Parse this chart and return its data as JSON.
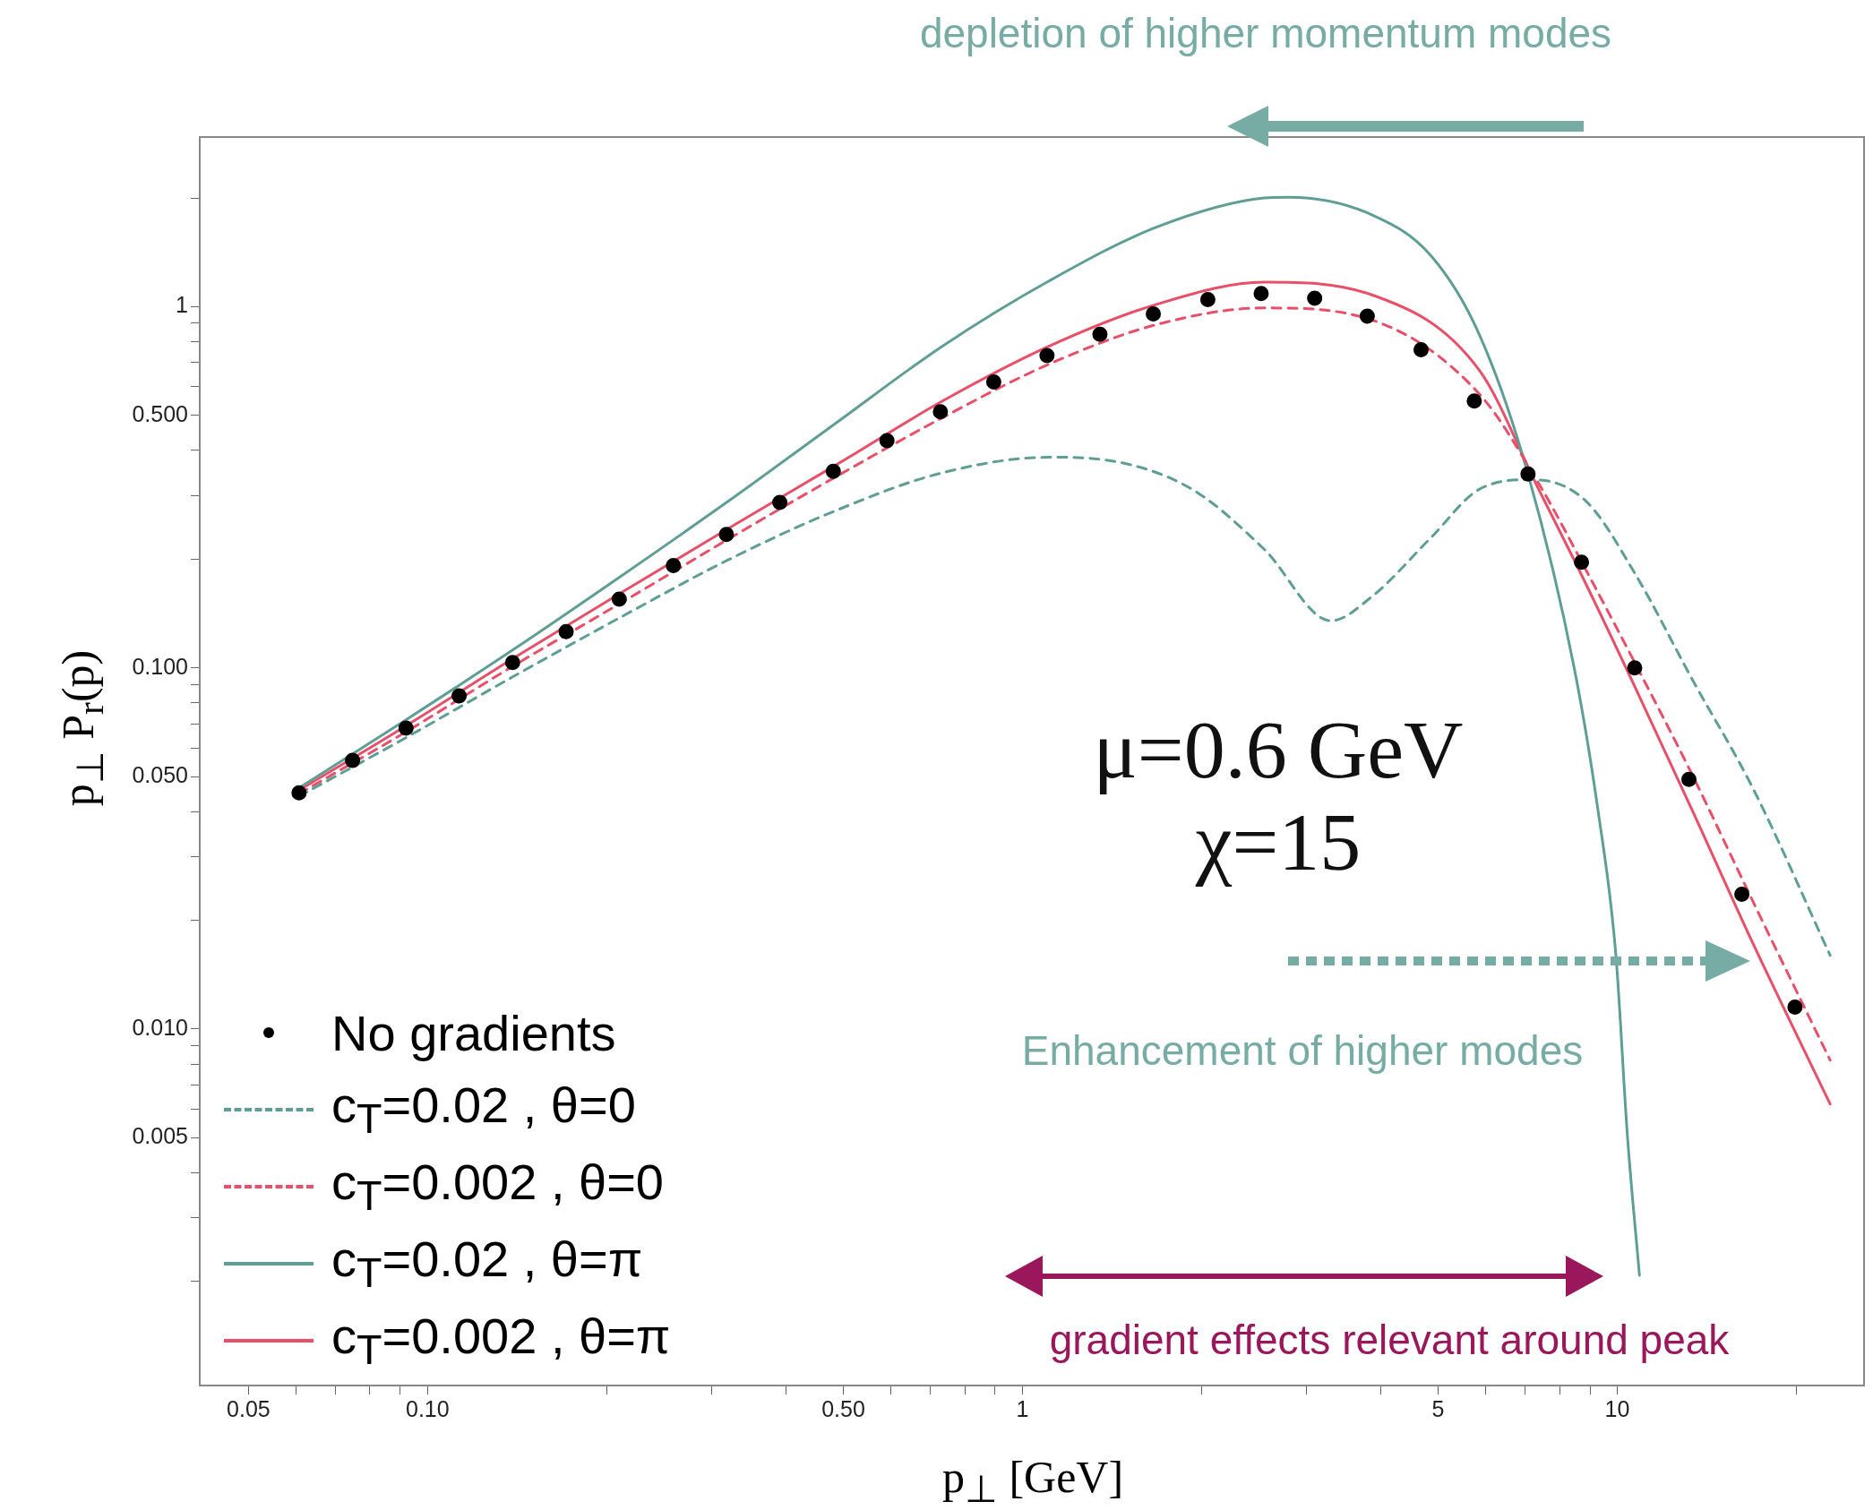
{
  "chart_data": {
    "type": "line",
    "xlabel": "p$_{⊥}$ [GeV]",
    "ylabel": "p$_{⊥}$ P$_{r}$(p)",
    "log": "xy",
    "grid": false,
    "legend": "bottom left",
    "xlim": [
      0.0414,
      26
    ],
    "ylim": [
      0.00103,
      2.95
    ],
    "xticks": [
      {
        "value": 0.05,
        "label": "0.05"
      },
      {
        "value": 0.06,
        "label": null
      },
      {
        "value": 0.07,
        "label": null
      },
      {
        "value": 0.08,
        "label": null
      },
      {
        "value": 0.09,
        "label": null
      },
      {
        "value": 0.1,
        "label": "0.10"
      },
      {
        "value": 0.2,
        "label": null
      },
      {
        "value": 0.3,
        "label": null
      },
      {
        "value": 0.4,
        "label": null
      },
      {
        "value": 0.5,
        "label": "0.50"
      },
      {
        "value": 0.6,
        "label": null
      },
      {
        "value": 0.7,
        "label": null
      },
      {
        "value": 0.8,
        "label": null
      },
      {
        "value": 0.9,
        "label": null
      },
      1,
      {
        "value": 2,
        "label": null
      },
      {
        "value": 3,
        "label": null
      },
      {
        "value": 4,
        "label": null
      },
      5,
      {
        "value": 6,
        "label": null
      },
      {
        "value": 7,
        "label": null
      },
      {
        "value": 8,
        "label": null
      },
      {
        "value": 9,
        "label": null
      },
      10,
      {
        "value": 20,
        "label": null
      }
    ],
    "yticks": [
      {
        "value": 0.002,
        "label": null
      },
      {
        "value": 0.003,
        "label": null
      },
      {
        "value": 0.004,
        "label": null
      },
      {
        "value": 0.005,
        "label": "0.005"
      },
      {
        "value": 0.006,
        "label": null
      },
      {
        "value": 0.007,
        "label": null
      },
      {
        "value": 0.008,
        "label": null
      },
      {
        "value": 0.009,
        "label": null
      },
      {
        "value": 0.01,
        "label": "0.010"
      },
      {
        "value": 0.02,
        "label": null
      },
      {
        "value": 0.03,
        "label": null
      },
      {
        "value": 0.04,
        "label": null
      },
      {
        "value": 0.05,
        "label": "0.050"
      },
      {
        "value": 0.06,
        "label": null
      },
      {
        "value": 0.07,
        "label": null
      },
      {
        "value": 0.08,
        "label": null
      },
      {
        "value": 0.09,
        "label": null
      },
      {
        "value": 0.1,
        "label": "0.100"
      },
      {
        "value": 0.2,
        "label": null
      },
      {
        "value": 0.3,
        "label": null
      },
      {
        "value": 0.4,
        "label": null
      },
      {
        "value": 0.5,
        "label": "0.500"
      },
      {
        "value": 0.6,
        "label": null
      },
      {
        "value": 0.7,
        "label": null
      },
      {
        "value": 0.8,
        "label": null
      },
      {
        "value": 0.9,
        "label": null
      },
      1,
      {
        "value": 2,
        "label": null
      }
    ],
    "series": [
      {
        "name": "No gradients",
        "type": "scatter",
        "marker": "circle",
        "color": "#000000",
        "x": [
          0.0608,
          0.0748,
          0.092,
          0.113,
          0.139,
          0.171,
          0.21,
          0.259,
          0.318,
          0.391,
          0.481,
          0.592,
          0.728,
          0.895,
          1.1,
          1.35,
          1.66,
          2.05,
          2.52,
          3.1,
          3.8,
          4.68,
          5.75,
          7.08,
          8.71,
          10.7,
          13.2,
          16.2,
          19.9
        ],
        "values": [
          0.0451,
          0.0554,
          0.0681,
          0.0836,
          0.1035,
          0.126,
          0.155,
          0.192,
          0.234,
          0.287,
          0.35,
          0.426,
          0.512,
          0.619,
          0.732,
          0.839,
          0.955,
          1.047,
          1.087,
          1.055,
          0.941,
          0.76,
          0.548,
          0.344,
          0.196,
          0.1,
          0.0491,
          0.0236,
          0.0115
        ]
      },
      {
        "name": "c$_{T}$=0.02 , θ=0",
        "type": "line",
        "marker": "none",
        "line_style": "dashed",
        "color": "#5f9e94",
        "x": [
          0.0608,
          0.092,
          0.139,
          0.211,
          0.32,
          0.484,
          0.734,
          1.11,
          1.4,
          1.93,
          2.55,
          3.3,
          3.86,
          4.87,
          5.86,
          7.21,
          8.87,
          10.7,
          13.4,
          16.9,
          22.8
        ],
        "values": [
          0.0441,
          0.0641,
          0.0944,
          0.138,
          0.199,
          0.272,
          0.347,
          0.383,
          0.375,
          0.312,
          0.213,
          0.135,
          0.157,
          0.23,
          0.312,
          0.332,
          0.289,
          0.183,
          0.0923,
          0.0465,
          0.016
        ]
      },
      {
        "name": "c$_{T}$=0.002 , θ=0",
        "type": "line",
        "marker": "none",
        "line_style": "dashed",
        "color": "#e8506a",
        "x": [
          0.0608,
          0.092,
          0.139,
          0.211,
          0.32,
          0.484,
          0.734,
          1.11,
          1.68,
          2.55,
          3.86,
          5.86,
          7.38,
          8.87,
          10.7,
          13.4,
          16.9,
          22.8
        ],
        "values": [
          0.0448,
          0.0665,
          0.101,
          0.151,
          0.227,
          0.337,
          0.493,
          0.694,
          0.892,
          0.992,
          0.92,
          0.574,
          0.324,
          0.186,
          0.1035,
          0.0502,
          0.0226,
          0.0082
        ]
      },
      {
        "name": "c$_{T}$=0.02 , θ=π",
        "type": "line",
        "marker": "none",
        "line_style": "solid",
        "color": "#5f9e94",
        "x": [
          0.0608,
          0.092,
          0.139,
          0.211,
          0.32,
          0.484,
          0.734,
          1.11,
          1.68,
          2.55,
          2.8,
          3.86,
          4.87,
          5.86,
          7.08,
          8.47,
          9.29,
          9.95,
          10.4,
          10.9
        ],
        "values": [
          0.0465,
          0.0718,
          0.112,
          0.179,
          0.289,
          0.474,
          0.778,
          1.18,
          1.66,
          2.0,
          2.01,
          1.8,
          1.38,
          0.839,
          0.344,
          0.0996,
          0.04,
          0.016,
          0.0051,
          0.00208
        ]
      },
      {
        "name": "c$_{T}$=0.002 , θ=π",
        "type": "line",
        "marker": "none",
        "line_style": "solid",
        "color": "#e8506a",
        "x": [
          0.0608,
          0.092,
          0.139,
          0.211,
          0.32,
          0.484,
          0.734,
          1.11,
          1.68,
          2.55,
          3.86,
          5.86,
          7.38,
          8.87,
          10.7,
          13.4,
          16.9,
          22.8
        ],
        "values": [
          0.0458,
          0.0691,
          0.106,
          0.161,
          0.243,
          0.363,
          0.548,
          0.778,
          1.015,
          1.17,
          1.08,
          0.668,
          0.312,
          0.17,
          0.0889,
          0.04,
          0.0173,
          0.0062
        ]
      }
    ],
    "annotations": [
      "depletion of higher momentum modes",
      "μ=0.6 GeV",
      "χ=15",
      "Enhancement of higher modes",
      "gradient effects relevant around peak"
    ]
  }
}
